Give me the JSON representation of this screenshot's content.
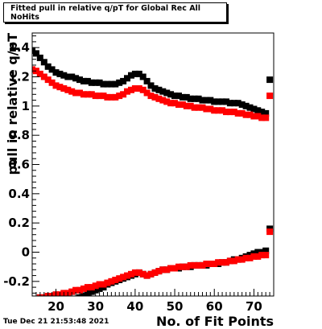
{
  "title": "Fitted pull in relative q/pT for Global Rec All NoHits",
  "timestamp": "Tue Dec 21 21:53:48 2021",
  "chart_data": {
    "type": "scatter",
    "xlabel": "No. of Fit Points",
    "ylabel": "pull in relative q/pT",
    "xlim": [
      14,
      75
    ],
    "ylim": [
      -0.3,
      1.5
    ],
    "x_ticks": [
      20,
      30,
      40,
      50,
      60,
      70
    ],
    "y_ticks": [
      -0.2,
      0,
      0.2,
      0.4,
      0.6,
      0.8,
      1,
      1.2,
      1.4
    ],
    "y_tick_labels": [
      "-0.2",
      "0",
      "0.2",
      "0.4",
      "0.6",
      "0.8",
      "1",
      "1.2",
      "1.4"
    ],
    "grid": false,
    "legend": "none",
    "series": [
      {
        "color": "#000000",
        "points": [
          [
            14,
            1.38
          ],
          [
            15,
            1.36
          ],
          [
            16,
            1.33
          ],
          [
            17,
            1.3
          ],
          [
            18,
            1.27
          ],
          [
            19,
            1.25
          ],
          [
            20,
            1.23
          ],
          [
            21,
            1.22
          ],
          [
            22,
            1.21
          ],
          [
            23,
            1.2
          ],
          [
            24,
            1.2
          ],
          [
            25,
            1.19
          ],
          [
            26,
            1.18
          ],
          [
            27,
            1.17
          ],
          [
            28,
            1.17
          ],
          [
            29,
            1.16
          ],
          [
            30,
            1.16
          ],
          [
            31,
            1.16
          ],
          [
            32,
            1.15
          ],
          [
            33,
            1.15
          ],
          [
            34,
            1.15
          ],
          [
            35,
            1.15
          ],
          [
            36,
            1.16
          ],
          [
            37,
            1.17
          ],
          [
            38,
            1.19
          ],
          [
            39,
            1.21
          ],
          [
            40,
            1.22
          ],
          [
            41,
            1.22
          ],
          [
            42,
            1.2
          ],
          [
            43,
            1.17
          ],
          [
            44,
            1.14
          ],
          [
            45,
            1.12
          ],
          [
            46,
            1.11
          ],
          [
            47,
            1.1
          ],
          [
            48,
            1.09
          ],
          [
            49,
            1.08
          ],
          [
            50,
            1.07
          ],
          [
            51,
            1.07
          ],
          [
            52,
            1.06
          ],
          [
            53,
            1.06
          ],
          [
            54,
            1.05
          ],
          [
            55,
            1.05
          ],
          [
            56,
            1.05
          ],
          [
            57,
            1.04
          ],
          [
            58,
            1.04
          ],
          [
            59,
            1.04
          ],
          [
            60,
            1.03
          ],
          [
            61,
            1.03
          ],
          [
            62,
            1.03
          ],
          [
            63,
            1.03
          ],
          [
            64,
            1.02
          ],
          [
            65,
            1.02
          ],
          [
            66,
            1.02
          ],
          [
            67,
            1.01
          ],
          [
            68,
            1.0
          ],
          [
            69,
            0.99
          ],
          [
            70,
            0.98
          ],
          [
            71,
            0.97
          ],
          [
            72,
            0.96
          ],
          [
            73,
            0.95
          ],
          [
            74,
            1.18
          ],
          [
            14,
            -0.38
          ],
          [
            15,
            -0.38
          ],
          [
            16,
            -0.37
          ],
          [
            17,
            -0.37
          ],
          [
            18,
            -0.36
          ],
          [
            19,
            -0.36
          ],
          [
            20,
            -0.36
          ],
          [
            21,
            -0.35
          ],
          [
            22,
            -0.35
          ],
          [
            23,
            -0.35
          ],
          [
            24,
            -0.34
          ],
          [
            25,
            -0.33
          ],
          [
            26,
            -0.31
          ],
          [
            27,
            -0.3
          ],
          [
            28,
            -0.28
          ],
          [
            29,
            -0.27
          ],
          [
            30,
            -0.26
          ],
          [
            31,
            -0.25
          ],
          [
            32,
            -0.24
          ],
          [
            33,
            -0.22
          ],
          [
            34,
            -0.21
          ],
          [
            35,
            -0.2
          ],
          [
            36,
            -0.19
          ],
          [
            37,
            -0.18
          ],
          [
            38,
            -0.17
          ],
          [
            39,
            -0.16
          ],
          [
            40,
            -0.15
          ],
          [
            41,
            -0.14
          ],
          [
            42,
            -0.15
          ],
          [
            43,
            -0.16
          ],
          [
            44,
            -0.15
          ],
          [
            45,
            -0.14
          ],
          [
            46,
            -0.13
          ],
          [
            47,
            -0.12
          ],
          [
            48,
            -0.12
          ],
          [
            49,
            -0.11
          ],
          [
            50,
            -0.11
          ],
          [
            51,
            -0.11
          ],
          [
            52,
            -0.1
          ],
          [
            53,
            -0.1
          ],
          [
            54,
            -0.1
          ],
          [
            55,
            -0.09
          ],
          [
            56,
            -0.09
          ],
          [
            57,
            -0.09
          ],
          [
            58,
            -0.09
          ],
          [
            59,
            -0.08
          ],
          [
            60,
            -0.08
          ],
          [
            61,
            -0.08
          ],
          [
            62,
            -0.07
          ],
          [
            63,
            -0.07
          ],
          [
            64,
            -0.06
          ],
          [
            65,
            -0.05
          ],
          [
            66,
            -0.05
          ],
          [
            67,
            -0.04
          ],
          [
            68,
            -0.03
          ],
          [
            69,
            -0.02
          ],
          [
            70,
            -0.01
          ],
          [
            71,
            0.0
          ],
          [
            72,
            0.0
          ],
          [
            73,
            0.01
          ],
          [
            74,
            0.16
          ]
        ]
      },
      {
        "color": "#ff0000",
        "points": [
          [
            14,
            1.25
          ],
          [
            15,
            1.24
          ],
          [
            16,
            1.22
          ],
          [
            17,
            1.2
          ],
          [
            18,
            1.18
          ],
          [
            19,
            1.16
          ],
          [
            20,
            1.14
          ],
          [
            21,
            1.13
          ],
          [
            22,
            1.12
          ],
          [
            23,
            1.11
          ],
          [
            24,
            1.1
          ],
          [
            25,
            1.09
          ],
          [
            26,
            1.09
          ],
          [
            27,
            1.08
          ],
          [
            28,
            1.08
          ],
          [
            29,
            1.08
          ],
          [
            30,
            1.07
          ],
          [
            31,
            1.07
          ],
          [
            32,
            1.07
          ],
          [
            33,
            1.06
          ],
          [
            34,
            1.06
          ],
          [
            35,
            1.06
          ],
          [
            36,
            1.07
          ],
          [
            37,
            1.08
          ],
          [
            38,
            1.1
          ],
          [
            39,
            1.11
          ],
          [
            40,
            1.12
          ],
          [
            41,
            1.12
          ],
          [
            42,
            1.11
          ],
          [
            43,
            1.09
          ],
          [
            44,
            1.07
          ],
          [
            45,
            1.06
          ],
          [
            46,
            1.05
          ],
          [
            47,
            1.04
          ],
          [
            48,
            1.03
          ],
          [
            49,
            1.02
          ],
          [
            50,
            1.02
          ],
          [
            51,
            1.01
          ],
          [
            52,
            1.01
          ],
          [
            53,
            1.0
          ],
          [
            54,
            1.0
          ],
          [
            55,
            0.99
          ],
          [
            56,
            0.99
          ],
          [
            57,
            0.99
          ],
          [
            58,
            0.98
          ],
          [
            59,
            0.98
          ],
          [
            60,
            0.97
          ],
          [
            61,
            0.97
          ],
          [
            62,
            0.97
          ],
          [
            63,
            0.96
          ],
          [
            64,
            0.96
          ],
          [
            65,
            0.96
          ],
          [
            66,
            0.95
          ],
          [
            67,
            0.95
          ],
          [
            68,
            0.94
          ],
          [
            69,
            0.94
          ],
          [
            70,
            0.93
          ],
          [
            71,
            0.93
          ],
          [
            72,
            0.92
          ],
          [
            73,
            0.92
          ],
          [
            74,
            1.07
          ],
          [
            14,
            -0.32
          ],
          [
            15,
            -0.32
          ],
          [
            16,
            -0.31
          ],
          [
            17,
            -0.31
          ],
          [
            18,
            -0.3
          ],
          [
            19,
            -0.3
          ],
          [
            20,
            -0.29
          ],
          [
            21,
            -0.29
          ],
          [
            22,
            -0.28
          ],
          [
            23,
            -0.28
          ],
          [
            24,
            -0.27
          ],
          [
            25,
            -0.26
          ],
          [
            26,
            -0.26
          ],
          [
            27,
            -0.25
          ],
          [
            28,
            -0.24
          ],
          [
            29,
            -0.24
          ],
          [
            30,
            -0.23
          ],
          [
            31,
            -0.22
          ],
          [
            32,
            -0.22
          ],
          [
            33,
            -0.21
          ],
          [
            34,
            -0.2
          ],
          [
            35,
            -0.19
          ],
          [
            36,
            -0.18
          ],
          [
            37,
            -0.17
          ],
          [
            38,
            -0.16
          ],
          [
            39,
            -0.15
          ],
          [
            40,
            -0.14
          ],
          [
            41,
            -0.14
          ],
          [
            42,
            -0.15
          ],
          [
            43,
            -0.16
          ],
          [
            44,
            -0.15
          ],
          [
            45,
            -0.14
          ],
          [
            46,
            -0.13
          ],
          [
            47,
            -0.12
          ],
          [
            48,
            -0.12
          ],
          [
            49,
            -0.11
          ],
          [
            50,
            -0.11
          ],
          [
            51,
            -0.1
          ],
          [
            52,
            -0.1
          ],
          [
            53,
            -0.1
          ],
          [
            54,
            -0.09
          ],
          [
            55,
            -0.09
          ],
          [
            56,
            -0.09
          ],
          [
            57,
            -0.09
          ],
          [
            58,
            -0.08
          ],
          [
            59,
            -0.08
          ],
          [
            60,
            -0.08
          ],
          [
            61,
            -0.07
          ],
          [
            62,
            -0.07
          ],
          [
            63,
            -0.07
          ],
          [
            64,
            -0.06
          ],
          [
            65,
            -0.06
          ],
          [
            66,
            -0.05
          ],
          [
            67,
            -0.05
          ],
          [
            68,
            -0.04
          ],
          [
            69,
            -0.04
          ],
          [
            70,
            -0.03
          ],
          [
            71,
            -0.03
          ],
          [
            72,
            -0.02
          ],
          [
            73,
            -0.02
          ],
          [
            74,
            0.14
          ]
        ]
      }
    ]
  }
}
